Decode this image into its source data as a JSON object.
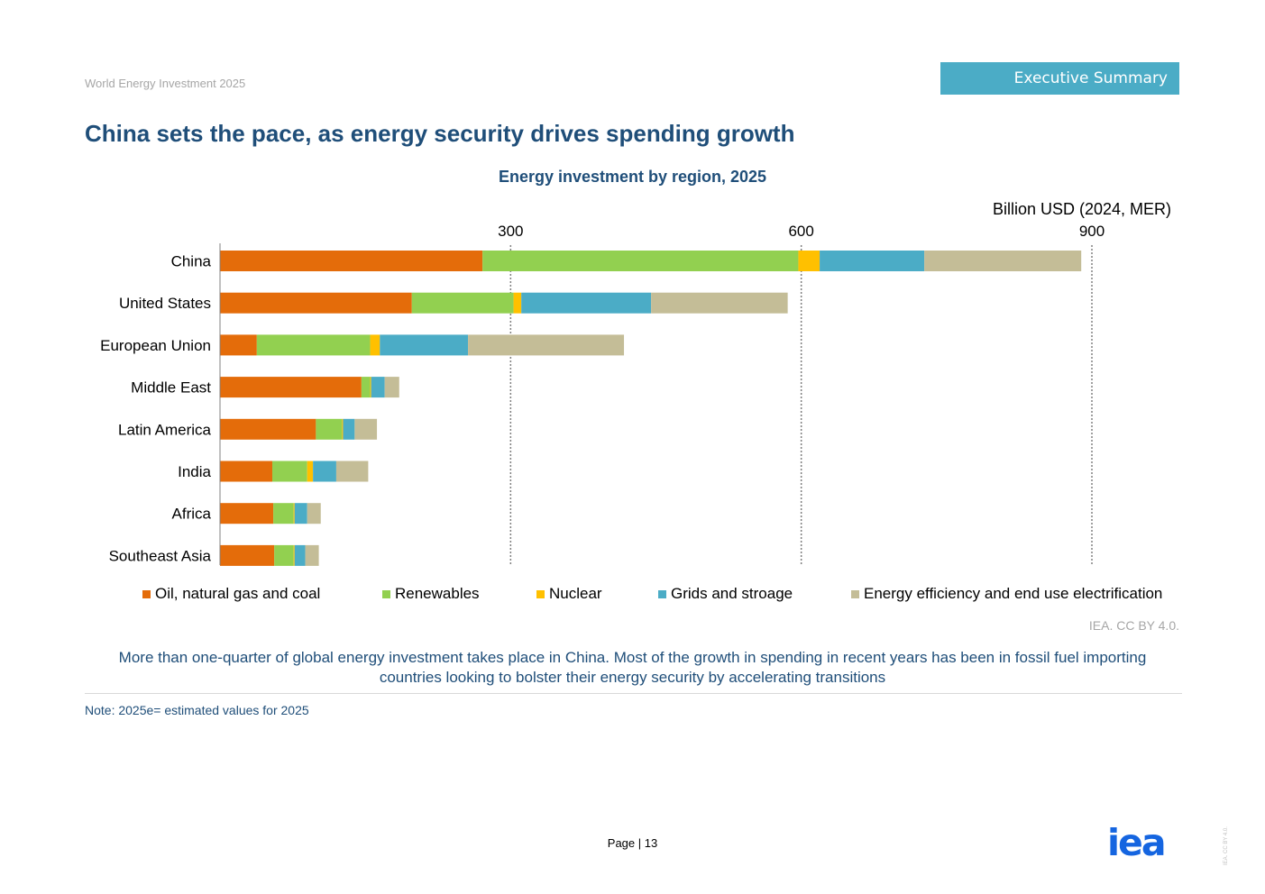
{
  "header": {
    "report_title": "World Energy Investment 2025",
    "section_tab": "Executive Summary"
  },
  "page_title": "China sets the pace, as energy security drives spending growth",
  "chart_data": {
    "type": "bar",
    "orientation": "horizontal",
    "stacked": true,
    "title": "Energy investment by region, 2025",
    "unit_label": "Billion USD (2024, MER)",
    "xlim": [
      0,
      1000
    ],
    "xticks": [
      300,
      600,
      900
    ],
    "grid": "vertical dotted",
    "legend_position": "bottom",
    "categories": [
      "China",
      "United States",
      "European Union",
      "Middle East",
      "Latin America",
      "India",
      "Africa",
      "Southeast Asia"
    ],
    "series": [
      {
        "name": "Oil, natural gas and coal",
        "color": "#e46c0a",
        "values": [
          271,
          198,
          38,
          146,
          99,
          54,
          55,
          56
        ]
      },
      {
        "name": "Renewables",
        "color": "#92d050",
        "values": [
          326,
          105,
          117,
          9,
          27,
          36,
          21,
          20
        ]
      },
      {
        "name": "Nuclear",
        "color": "#ffc000",
        "values": [
          22,
          8,
          10,
          1,
          1,
          6,
          1,
          1
        ]
      },
      {
        "name": "Grids and stroage",
        "color": "#4bacc6",
        "values": [
          108,
          134,
          91,
          14,
          12,
          24,
          13,
          11
        ]
      },
      {
        "name": "Energy efficiency and end use electrification",
        "color": "#c4bd97",
        "values": [
          162,
          141,
          161,
          15,
          23,
          33,
          14,
          14
        ]
      }
    ]
  },
  "source": "IEA. CC BY 4.0.",
  "caption": "More than one-quarter of global energy investment takes place in China. Most of the growth in spending in recent years has been in fossil fuel importing countries looking to bolster their energy security by accelerating transitions",
  "note": "Note: 2025e= estimated values for 2025",
  "footer": {
    "page_label": "Page | 13",
    "logo_text": "iea",
    "side_note": "IEA. CC BY 4.0."
  }
}
